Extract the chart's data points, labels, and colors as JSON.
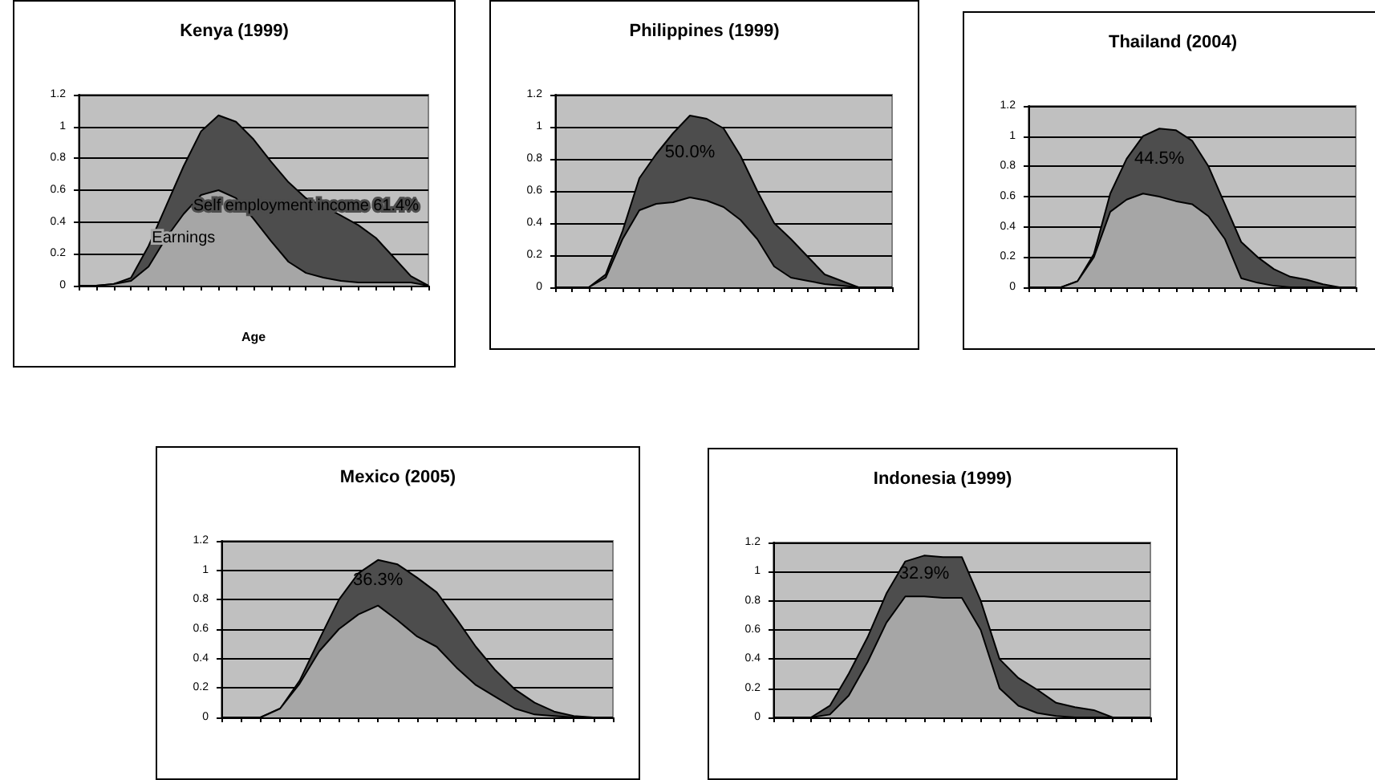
{
  "chart_data": [
    {
      "type": "area",
      "title": "Kenya (1999)",
      "xlabel": "Age",
      "stacked": true,
      "grid": "y",
      "ylim": [
        0,
        1.2
      ],
      "yticks": [
        0,
        0.2,
        0.4,
        0.6,
        0.8,
        1,
        1.2
      ],
      "categories": [
        null,
        null,
        null,
        null,
        null,
        null,
        null,
        null,
        null,
        null,
        null,
        null,
        null,
        null,
        null,
        null,
        null,
        null,
        null,
        null,
        null
      ],
      "series": [
        {
          "name": "Earnings",
          "color": "#a6a6a6",
          "values": [
            0,
            0,
            0.01,
            0.03,
            0.12,
            0.3,
            0.45,
            0.57,
            0.6,
            0.55,
            0.42,
            0.28,
            0.15,
            0.08,
            0.05,
            0.03,
            0.02,
            0.02,
            0.02,
            0.02,
            0
          ]
        },
        {
          "name": "Self employment income 61.4%",
          "color": "#4d4d4d",
          "values": [
            0,
            0,
            0,
            0.02,
            0.13,
            0.2,
            0.3,
            0.4,
            0.47,
            0.48,
            0.5,
            0.5,
            0.5,
            0.47,
            0.45,
            0.41,
            0.36,
            0.28,
            0.16,
            0.04,
            0
          ]
        }
      ]
    },
    {
      "type": "area",
      "title": "Philippines (1999)",
      "stacked": true,
      "grid": "y",
      "ylim": [
        0,
        1.2
      ],
      "yticks": [
        0,
        0.2,
        0.4,
        0.6,
        0.8,
        1,
        1.2
      ],
      "annotations": [
        "50.0%"
      ],
      "categories": [
        null,
        null,
        null,
        null,
        null,
        null,
        null,
        null,
        null,
        null,
        null,
        null,
        null,
        null,
        null,
        null,
        null,
        null,
        null,
        null,
        null
      ],
      "series": [
        {
          "color": "#a6a6a6",
          "values": [
            0,
            0,
            0,
            0.06,
            0.3,
            0.48,
            0.52,
            0.53,
            0.56,
            0.54,
            0.5,
            0.42,
            0.3,
            0.13,
            0.06,
            0.04,
            0.02,
            0.01,
            0,
            0,
            0
          ]
        },
        {
          "color": "#4d4d4d",
          "values": [
            0,
            0,
            0,
            0.02,
            0.05,
            0.2,
            0.31,
            0.43,
            0.51,
            0.51,
            0.49,
            0.4,
            0.3,
            0.27,
            0.24,
            0.15,
            0.06,
            0.03,
            0,
            0,
            0
          ]
        }
      ]
    },
    {
      "type": "area",
      "title": "Thailand (2004)",
      "stacked": true,
      "grid": "y",
      "ylim": [
        0,
        1.2
      ],
      "yticks": [
        0,
        0.2,
        0.4,
        0.6,
        0.8,
        1,
        1.2
      ],
      "annotations": [
        "44.5%"
      ],
      "categories": [
        null,
        null,
        null,
        null,
        null,
        null,
        null,
        null,
        null,
        null,
        null,
        null,
        null,
        null,
        null,
        null,
        null,
        null,
        null,
        null,
        null
      ],
      "series": [
        {
          "color": "#a6a6a6",
          "values": [
            0,
            0,
            0,
            0.04,
            0.2,
            0.5,
            0.58,
            0.62,
            0.6,
            0.57,
            0.55,
            0.47,
            0.32,
            0.06,
            0.03,
            0.01,
            0,
            0,
            0,
            0,
            0
          ]
        },
        {
          "color": "#4d4d4d",
          "values": [
            0,
            0,
            0,
            0,
            0.02,
            0.12,
            0.27,
            0.38,
            0.45,
            0.47,
            0.42,
            0.33,
            0.23,
            0.24,
            0.17,
            0.11,
            0.07,
            0.05,
            0.02,
            0,
            0
          ]
        }
      ]
    },
    {
      "type": "area",
      "title": "Mexico (2005)",
      "stacked": true,
      "grid": "y",
      "ylim": [
        0,
        1.2
      ],
      "yticks": [
        0,
        0.2,
        0.4,
        0.6,
        0.8,
        1,
        1.2
      ],
      "annotations": [
        "36.3%"
      ],
      "categories": [
        null,
        null,
        null,
        null,
        null,
        null,
        null,
        null,
        null,
        null,
        null,
        null,
        null,
        null,
        null,
        null,
        null,
        null,
        null,
        null,
        null
      ],
      "series": [
        {
          "color": "#a6a6a6",
          "values": [
            0,
            0,
            0,
            0.06,
            0.23,
            0.45,
            0.6,
            0.7,
            0.76,
            0.66,
            0.55,
            0.48,
            0.34,
            0.22,
            0.14,
            0.06,
            0.02,
            0.01,
            0,
            0,
            0
          ]
        },
        {
          "color": "#4d4d4d",
          "values": [
            0,
            0,
            0,
            0,
            0.02,
            0.08,
            0.2,
            0.28,
            0.31,
            0.38,
            0.4,
            0.37,
            0.33,
            0.26,
            0.18,
            0.13,
            0.08,
            0.03,
            0.01,
            0,
            0
          ]
        }
      ]
    },
    {
      "type": "area",
      "title": "Indonesia (1999)",
      "stacked": true,
      "grid": "y",
      "ylim": [
        0,
        1.2
      ],
      "yticks": [
        0,
        0.2,
        0.4,
        0.6,
        0.8,
        1,
        1.2
      ],
      "annotations": [
        "32.9%"
      ],
      "categories": [
        null,
        null,
        null,
        null,
        null,
        null,
        null,
        null,
        null,
        null,
        null,
        null,
        null,
        null,
        null,
        null,
        null,
        null,
        null,
        null,
        null
      ],
      "series": [
        {
          "color": "#a6a6a6",
          "values": [
            0,
            0,
            0,
            0.02,
            0.15,
            0.38,
            0.65,
            0.83,
            0.83,
            0.82,
            0.82,
            0.6,
            0.2,
            0.08,
            0.03,
            0.01,
            0,
            0,
            0,
            0,
            0
          ]
        },
        {
          "color": "#4d4d4d",
          "values": [
            0,
            0,
            0,
            0.06,
            0.15,
            0.17,
            0.2,
            0.24,
            0.28,
            0.28,
            0.28,
            0.2,
            0.2,
            0.19,
            0.16,
            0.09,
            0.07,
            0.05,
            0,
            0,
            0
          ]
        }
      ]
    }
  ]
}
